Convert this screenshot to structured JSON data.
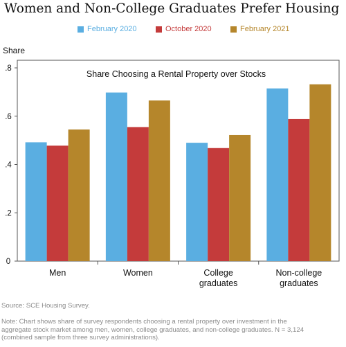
{
  "chart_data": {
    "type": "bar",
    "title": "Women and Non-College Graduates Prefer Housing",
    "subtitle": "Share Choosing a Rental Property over Stocks",
    "ylabel": "Share",
    "ylim": [
      0,
      0.8
    ],
    "yticks": [
      0,
      0.2,
      0.4,
      0.6,
      0.8
    ],
    "ytick_labels": [
      "0",
      ".2",
      ".4",
      ".6",
      ".8"
    ],
    "categories": [
      "Men",
      "Women",
      "College graduates",
      "Non-college graduates"
    ],
    "category_lines": [
      [
        "Men"
      ],
      [
        "Women"
      ],
      [
        "College",
        "graduates"
      ],
      [
        "Non-college",
        "graduates"
      ]
    ],
    "legend_position": "top",
    "grid": false,
    "series": [
      {
        "name": "February 2020",
        "color": "#5aaee1",
        "values": [
          0.492,
          0.698,
          0.49,
          0.715
        ]
      },
      {
        "name": "October 2020",
        "color": "#c43b3b",
        "values": [
          0.478,
          0.555,
          0.468,
          0.588
        ]
      },
      {
        "name": "February 2021",
        "color": "#b5862b",
        "values": [
          0.545,
          0.665,
          0.522,
          0.732
        ]
      }
    ]
  },
  "footer": {
    "source": "Source: SCE Housing Survey.",
    "note_lines": [
      "Note: Chart shows share of survey respondents choosing a rental property over investment in the",
      "aggregate stock market among men, women, college graduates, and non-college graduates. N = 3,124",
      "(combined sample from three survey administrations)."
    ]
  }
}
